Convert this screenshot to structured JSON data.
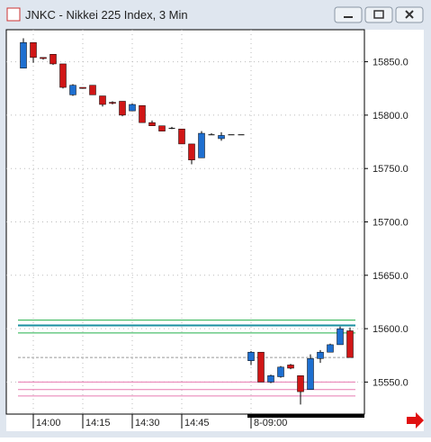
{
  "chart_data": {
    "type": "candlestick",
    "title": "JNKC - Nikkei 225 Index, 3 Min",
    "categories": [
      null,
      "14:00",
      null,
      null,
      null,
      null,
      "14:15",
      null,
      null,
      null,
      null,
      "14:30",
      null,
      null,
      null,
      null,
      "14:45",
      null,
      null,
      null,
      null,
      null,
      null,
      "8-09:00",
      null,
      null,
      null,
      null,
      null,
      null,
      null,
      null,
      null,
      null
    ],
    "series": [
      {
        "name": "open",
        "values": [
          15844,
          15868,
          15854,
          15857,
          15848,
          15819,
          15826,
          15828,
          15818,
          15812,
          15813,
          15804,
          15809,
          15793,
          15790,
          15788,
          15787,
          15773,
          15760,
          15782,
          15778,
          15782,
          15782,
          15570,
          15578,
          15550,
          15555,
          15566,
          15556,
          15543,
          15572,
          15578,
          15585,
          15598
        ]
      },
      {
        "name": "close",
        "values": [
          15868,
          15854,
          15853,
          15848,
          15826,
          15828,
          15825,
          15819,
          15810,
          15811,
          15800,
          15810,
          15793,
          15790,
          15785,
          15788,
          15773,
          15758,
          15783,
          15782,
          15781,
          15782,
          15782,
          15578,
          15550,
          15556,
          15564,
          15563,
          15541,
          15572,
          15578,
          15585,
          15600,
          15573
        ]
      },
      {
        "name": "high",
        "values": [
          15872,
          15868,
          15854,
          15857,
          15848,
          15829,
          15826,
          15828,
          15818,
          15813,
          15813,
          15811,
          15809,
          15795,
          15790,
          15789,
          15787,
          15773,
          15785,
          15783,
          15784,
          15782,
          15782,
          15579,
          15578,
          15557,
          15565,
          15567,
          15556,
          15576,
          15580,
          15586,
          15602,
          15601
        ]
      },
      {
        "name": "low",
        "values": [
          15844,
          15849,
          15852,
          15847,
          15825,
          15818,
          15825,
          15819,
          15808,
          15810,
          15799,
          15804,
          15793,
          15790,
          15785,
          15787,
          15773,
          15754,
          15760,
          15782,
          15776,
          15782,
          15782,
          15566,
          15550,
          15549,
          15554,
          15562,
          15529,
          15543,
          15568,
          15578,
          15585,
          15573
        ]
      }
    ],
    "up_color": "#1e6fd0",
    "down_color": "#d01616",
    "reference_lines": [
      {
        "value": 15608,
        "color": "#22b04a"
      },
      {
        "value": 15603,
        "color": "#1a8fa0"
      },
      {
        "value": 15596,
        "color": "#22b04a"
      },
      {
        "value": 15573,
        "color": "#999999"
      },
      {
        "value": 15550,
        "color": "#e87ab0"
      },
      {
        "value": 15543,
        "color": "#e87ab0"
      },
      {
        "value": 15537,
        "color": "#e87ab0"
      }
    ],
    "ylim": [
      15520,
      15880
    ],
    "yticks": [
      {
        "value": 15550,
        "label": "15550.0"
      },
      {
        "value": 15600,
        "label": "15600.0"
      },
      {
        "value": 15650,
        "label": "15650.0"
      },
      {
        "value": 15700,
        "label": "15700.0"
      },
      {
        "value": 15750,
        "label": "15750.0"
      },
      {
        "value": 15800,
        "label": "15800.0"
      },
      {
        "value": 15850,
        "label": "15850.0"
      }
    ],
    "grid": true
  }
}
